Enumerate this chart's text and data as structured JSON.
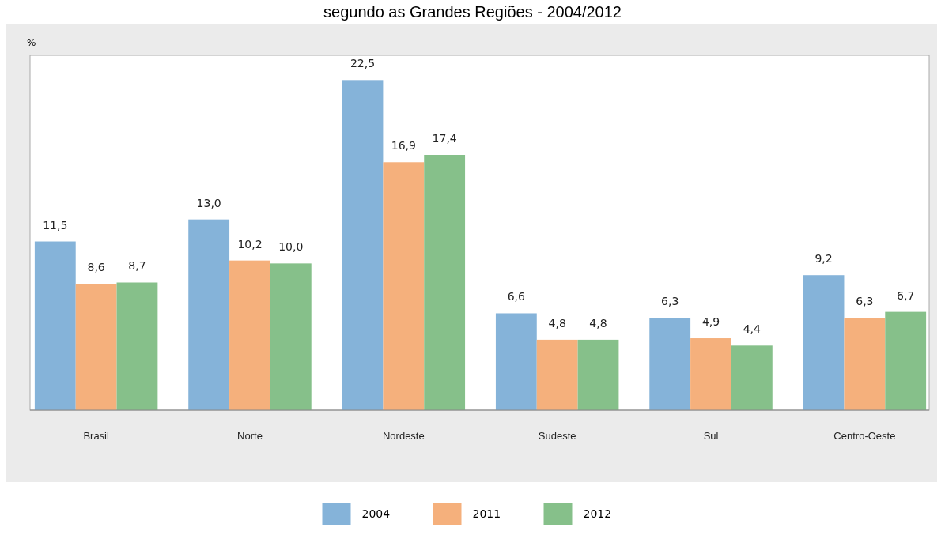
{
  "chart_data": {
    "type": "bar",
    "title": "segundo as Grandes Regiões - 2004/2012",
    "ylabel": "%",
    "categories": [
      "Brasil",
      "Norte",
      "Nordeste",
      "Sudeste",
      "Sul",
      "Centro-Oeste"
    ],
    "series": [
      {
        "name": "2004",
        "color": "#85b3d9",
        "values": [
          11.5,
          13.0,
          22.5,
          6.6,
          6.3,
          9.2
        ],
        "value_labels": [
          "11,5",
          "13,0",
          "22,5",
          "6,6",
          "6,3",
          "9,2"
        ]
      },
      {
        "name": "2011",
        "color": "#f5b07c",
        "values": [
          8.6,
          10.2,
          16.9,
          4.8,
          4.9,
          6.3
        ],
        "value_labels": [
          "8,6",
          "10,2",
          "16,9",
          "4,8",
          "4,9",
          "6,3"
        ]
      },
      {
        "name": "2012",
        "color": "#86c08a",
        "values": [
          8.7,
          10.0,
          17.4,
          4.8,
          4.4,
          6.7
        ],
        "value_labels": [
          "8,7",
          "10,0",
          "17,4",
          "4,8",
          "4,4",
          "6,7"
        ]
      }
    ],
    "legend": "bottom"
  }
}
